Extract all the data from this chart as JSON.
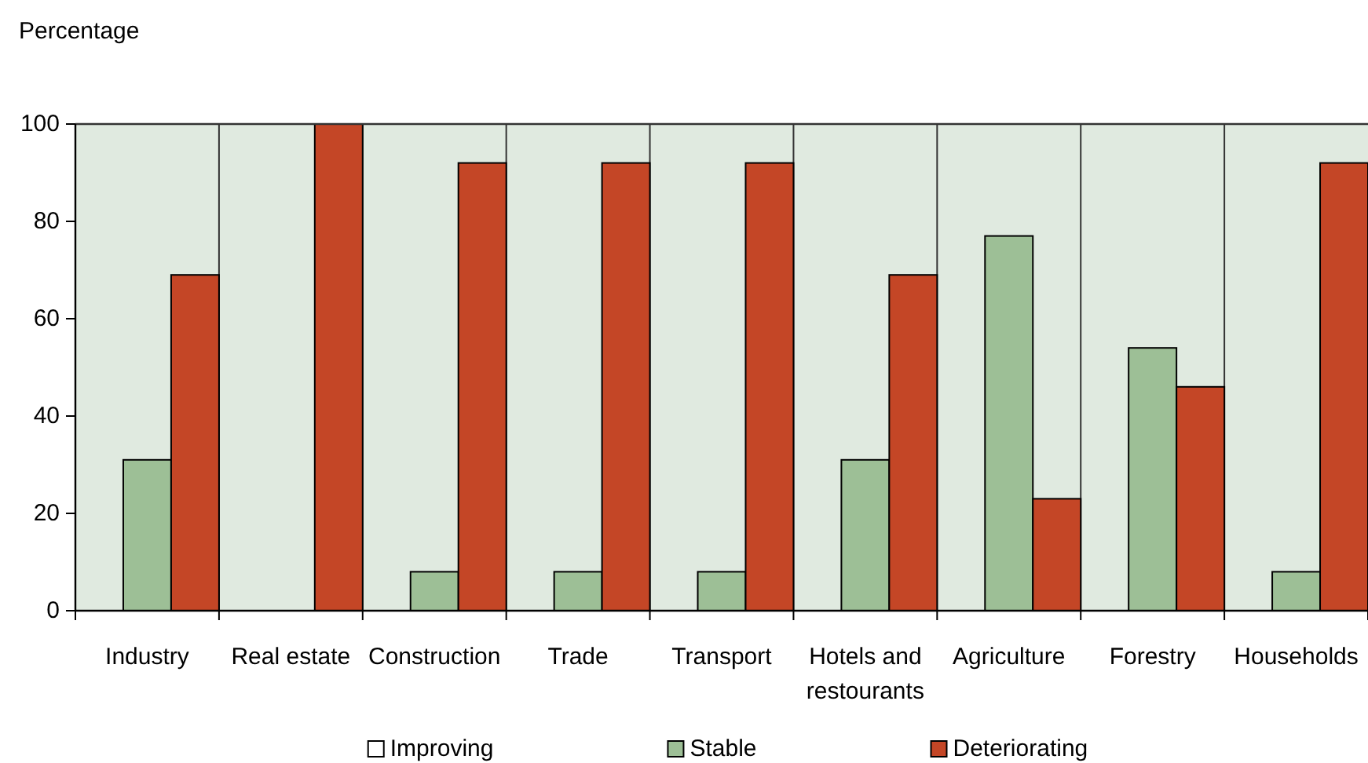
{
  "chart_data": {
    "type": "bar",
    "ylabel": "Percentage",
    "categories": [
      "Industry",
      "Real estate",
      "Construction",
      "Trade",
      "Transport",
      "Hotels and restourants",
      "Agriculture",
      "Forestry",
      "Households"
    ],
    "series": [
      {
        "name": "Improving",
        "color": "#ffffff",
        "values": [
          0,
          0,
          0,
          0,
          0,
          0,
          0,
          0,
          0
        ]
      },
      {
        "name": "Stable",
        "color": "#9dbf96",
        "values": [
          31,
          0,
          8,
          8,
          8,
          31,
          77,
          54,
          8
        ]
      },
      {
        "name": "Deteriorating",
        "color": "#c44626",
        "values": [
          69,
          100,
          92,
          92,
          92,
          69,
          23,
          46,
          92
        ]
      }
    ],
    "ylim": [
      0,
      100
    ],
    "yticks": [
      0,
      20,
      40,
      60,
      80,
      100
    ],
    "grid": "x",
    "legend": "bottom"
  }
}
